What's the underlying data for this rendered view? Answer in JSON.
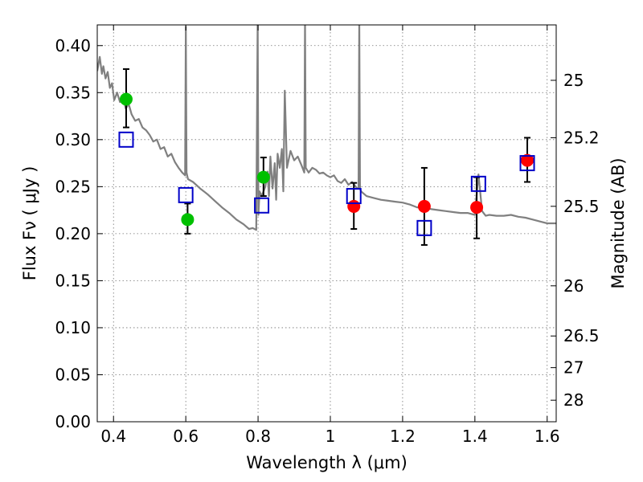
{
  "chart_data": {
    "type": "scatter",
    "title": "",
    "xlabel": "Wavelength  λ (μm)",
    "ylabel": "Flux  Fν  ( μJy )",
    "ylabel_right": "Magnitude (AB)",
    "xlim": [
      0.355,
      1.625
    ],
    "ylim": [
      0.0,
      0.422
    ],
    "grid": true,
    "x_ticks": [
      0.4,
      0.6,
      0.8,
      1.0,
      1.2,
      1.4,
      1.6
    ],
    "x_tick_labels": [
      "0.4",
      "0.6",
      "0.8",
      "1",
      "1.2",
      "1.4",
      "1.6"
    ],
    "y_ticks": [
      0.0,
      0.05,
      0.1,
      0.15,
      0.2,
      0.25,
      0.3,
      0.35,
      0.4
    ],
    "y_tick_labels": [
      "0.00",
      "0.05",
      "0.10",
      "0.15",
      "0.20",
      "0.25",
      "0.30",
      "0.35",
      "0.40"
    ],
    "right_ticks": [
      {
        "label": "25",
        "mag": 25.0
      },
      {
        "label": "25.2",
        "mag": 25.2
      },
      {
        "label": "25.5",
        "mag": 25.5
      },
      {
        "label": "26",
        "mag": 26.0
      },
      {
        "label": "26.5",
        "mag": 26.5
      },
      {
        "label": "27",
        "mag": 27.0
      },
      {
        "label": "28",
        "mag": 28.0
      }
    ],
    "series": [
      {
        "kind": "line",
        "color": "#808080",
        "x": [
          0.355,
          0.362,
          0.368,
          0.372,
          0.378,
          0.384,
          0.39,
          0.396,
          0.402,
          0.41,
          0.418,
          0.426,
          0.434,
          0.442,
          0.45,
          0.46,
          0.47,
          0.48,
          0.49,
          0.5,
          0.51,
          0.52,
          0.53,
          0.54,
          0.55,
          0.56,
          0.57,
          0.58,
          0.59,
          0.598,
          0.6,
          0.602,
          0.606,
          0.62,
          0.64,
          0.66,
          0.68,
          0.7,
          0.72,
          0.74,
          0.76,
          0.775,
          0.785,
          0.795,
          0.799,
          0.801,
          0.804,
          0.81,
          0.82,
          0.826,
          0.83,
          0.834,
          0.84,
          0.846,
          0.85,
          0.854,
          0.86,
          0.866,
          0.87,
          0.874,
          0.88,
          0.89,
          0.9,
          0.91,
          0.92,
          0.928,
          0.93,
          0.932,
          0.94,
          0.95,
          0.96,
          0.97,
          0.98,
          0.99,
          1.0,
          1.01,
          1.02,
          1.03,
          1.04,
          1.05,
          1.06,
          1.07,
          1.075,
          1.078,
          1.08,
          1.082,
          1.085,
          1.1,
          1.12,
          1.14,
          1.16,
          1.18,
          1.2,
          1.22,
          1.24,
          1.26,
          1.28,
          1.3,
          1.32,
          1.34,
          1.36,
          1.38,
          1.39,
          1.4,
          1.41,
          1.42,
          1.43,
          1.44,
          1.46,
          1.48,
          1.5,
          1.52,
          1.54,
          1.56,
          1.58,
          1.6,
          1.625
        ],
        "y": [
          0.373,
          0.388,
          0.37,
          0.378,
          0.365,
          0.372,
          0.355,
          0.36,
          0.342,
          0.35,
          0.34,
          0.345,
          0.333,
          0.338,
          0.327,
          0.32,
          0.322,
          0.313,
          0.31,
          0.305,
          0.298,
          0.3,
          0.29,
          0.292,
          0.282,
          0.285,
          0.276,
          0.27,
          0.265,
          0.262,
          0.42,
          0.265,
          0.258,
          0.255,
          0.248,
          0.242,
          0.235,
          0.228,
          0.222,
          0.215,
          0.21,
          0.205,
          0.206,
          0.204,
          0.43,
          0.22,
          0.245,
          0.24,
          0.25,
          0.266,
          0.24,
          0.282,
          0.248,
          0.275,
          0.236,
          0.285,
          0.27,
          0.29,
          0.245,
          0.352,
          0.27,
          0.288,
          0.278,
          0.282,
          0.273,
          0.265,
          0.43,
          0.27,
          0.265,
          0.27,
          0.268,
          0.264,
          0.265,
          0.262,
          0.26,
          0.262,
          0.256,
          0.254,
          0.258,
          0.252,
          0.255,
          0.25,
          0.248,
          0.248,
          0.43,
          0.248,
          0.245,
          0.24,
          0.238,
          0.236,
          0.235,
          0.234,
          0.233,
          0.231,
          0.228,
          0.228,
          0.226,
          0.225,
          0.224,
          0.223,
          0.222,
          0.222,
          0.221,
          0.22,
          0.263,
          0.224,
          0.219,
          0.22,
          0.219,
          0.219,
          0.22,
          0.218,
          0.217,
          0.215,
          0.213,
          0.211,
          0.211
        ]
      },
      {
        "kind": "points",
        "marker": "circle",
        "color": "#00c000",
        "x": [
          0.435,
          0.605,
          0.815
        ],
        "y": [
          0.343,
          0.215,
          0.26
        ],
        "err_low": [
          0.03,
          0.015,
          0.02
        ],
        "err_high": [
          0.032,
          0.017,
          0.021
        ]
      },
      {
        "kind": "points",
        "marker": "circle",
        "color": "#ff0000",
        "x": [
          1.065,
          1.26,
          1.405,
          1.545
        ],
        "y": [
          0.229,
          0.229,
          0.228,
          0.278
        ],
        "err_low": [
          0.024,
          0.041,
          0.033,
          0.023
        ],
        "err_high": [
          0.025,
          0.041,
          0.032,
          0.024
        ]
      },
      {
        "kind": "points",
        "marker": "open-square",
        "color": "#0000c8",
        "x": [
          0.435,
          0.6,
          0.81,
          1.065,
          1.26,
          1.41,
          1.545
        ],
        "y": [
          0.3,
          0.241,
          0.23,
          0.24,
          0.206,
          0.253,
          0.275
        ]
      }
    ]
  }
}
